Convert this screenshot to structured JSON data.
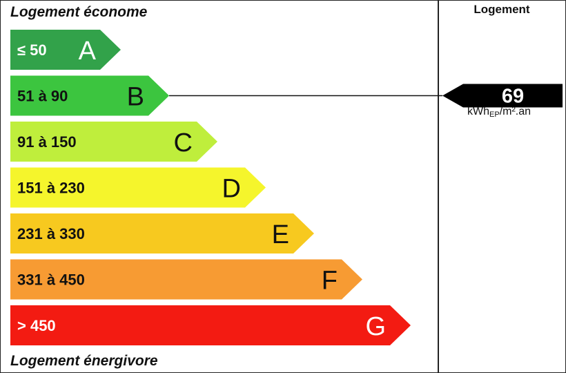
{
  "chart_data": {
    "type": "bar",
    "title": "",
    "top_label": "Logement économe",
    "bottom_label": "Logement énergivore",
    "column_header": "Logement",
    "categories": [
      "A",
      "B",
      "C",
      "D",
      "E",
      "F",
      "G"
    ],
    "ranges": [
      "≤ 50",
      "51 à 90",
      "91 à 150",
      "151 à 230",
      "231 à 330",
      "331 à 450",
      "> 450"
    ],
    "colors": [
      "#32a24a",
      "#3cc53f",
      "#bfee3c",
      "#f5f52c",
      "#f7c91f",
      "#f79b33",
      "#f31b12"
    ],
    "indicator": {
      "value": 69,
      "class": "B",
      "unit_prefix": "kWh",
      "unit_sub": "EP",
      "unit_suffix": "/m².an"
    }
  }
}
